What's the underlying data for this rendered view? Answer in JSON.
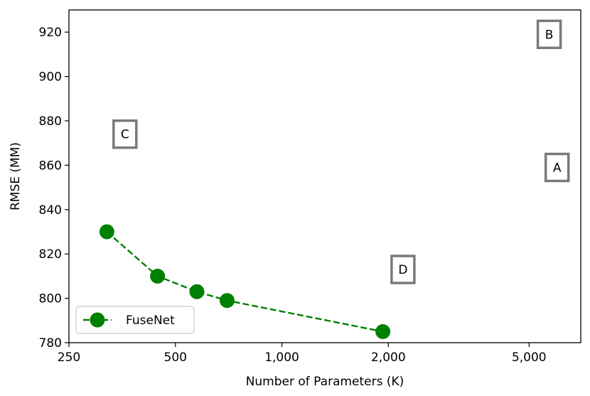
{
  "chart_data": {
    "type": "line",
    "xlabel": "Number of Parameters (K)",
    "ylabel": "RMSE (MM)",
    "xscale": "log",
    "xlim": [
      250,
      7000
    ],
    "ylim": [
      780,
      930
    ],
    "xticks": [
      250,
      500,
      1000,
      2000,
      5000
    ],
    "xtick_labels": [
      "250",
      "500",
      "1,000",
      "2,000",
      "5,000"
    ],
    "yticks": [
      780,
      800,
      820,
      840,
      860,
      880,
      900,
      920
    ],
    "ytick_labels": [
      "780",
      "800",
      "820",
      "840",
      "860",
      "880",
      "900",
      "920"
    ],
    "grid": false,
    "legend_position": "lower-left",
    "series": [
      {
        "name": "FuseNet",
        "color": "#008000",
        "line_style": "dashed",
        "marker": "circle",
        "x": [
          320,
          445,
          575,
          700,
          1930
        ],
        "y": [
          830,
          810,
          803,
          799,
          785
        ]
      }
    ],
    "annotations": [
      {
        "label": "A",
        "x": 6000,
        "y": 859
      },
      {
        "label": "B",
        "x": 5700,
        "y": 919
      },
      {
        "label": "C",
        "x": 360,
        "y": 874
      },
      {
        "label": "D",
        "x": 2200,
        "y": 813
      }
    ]
  }
}
